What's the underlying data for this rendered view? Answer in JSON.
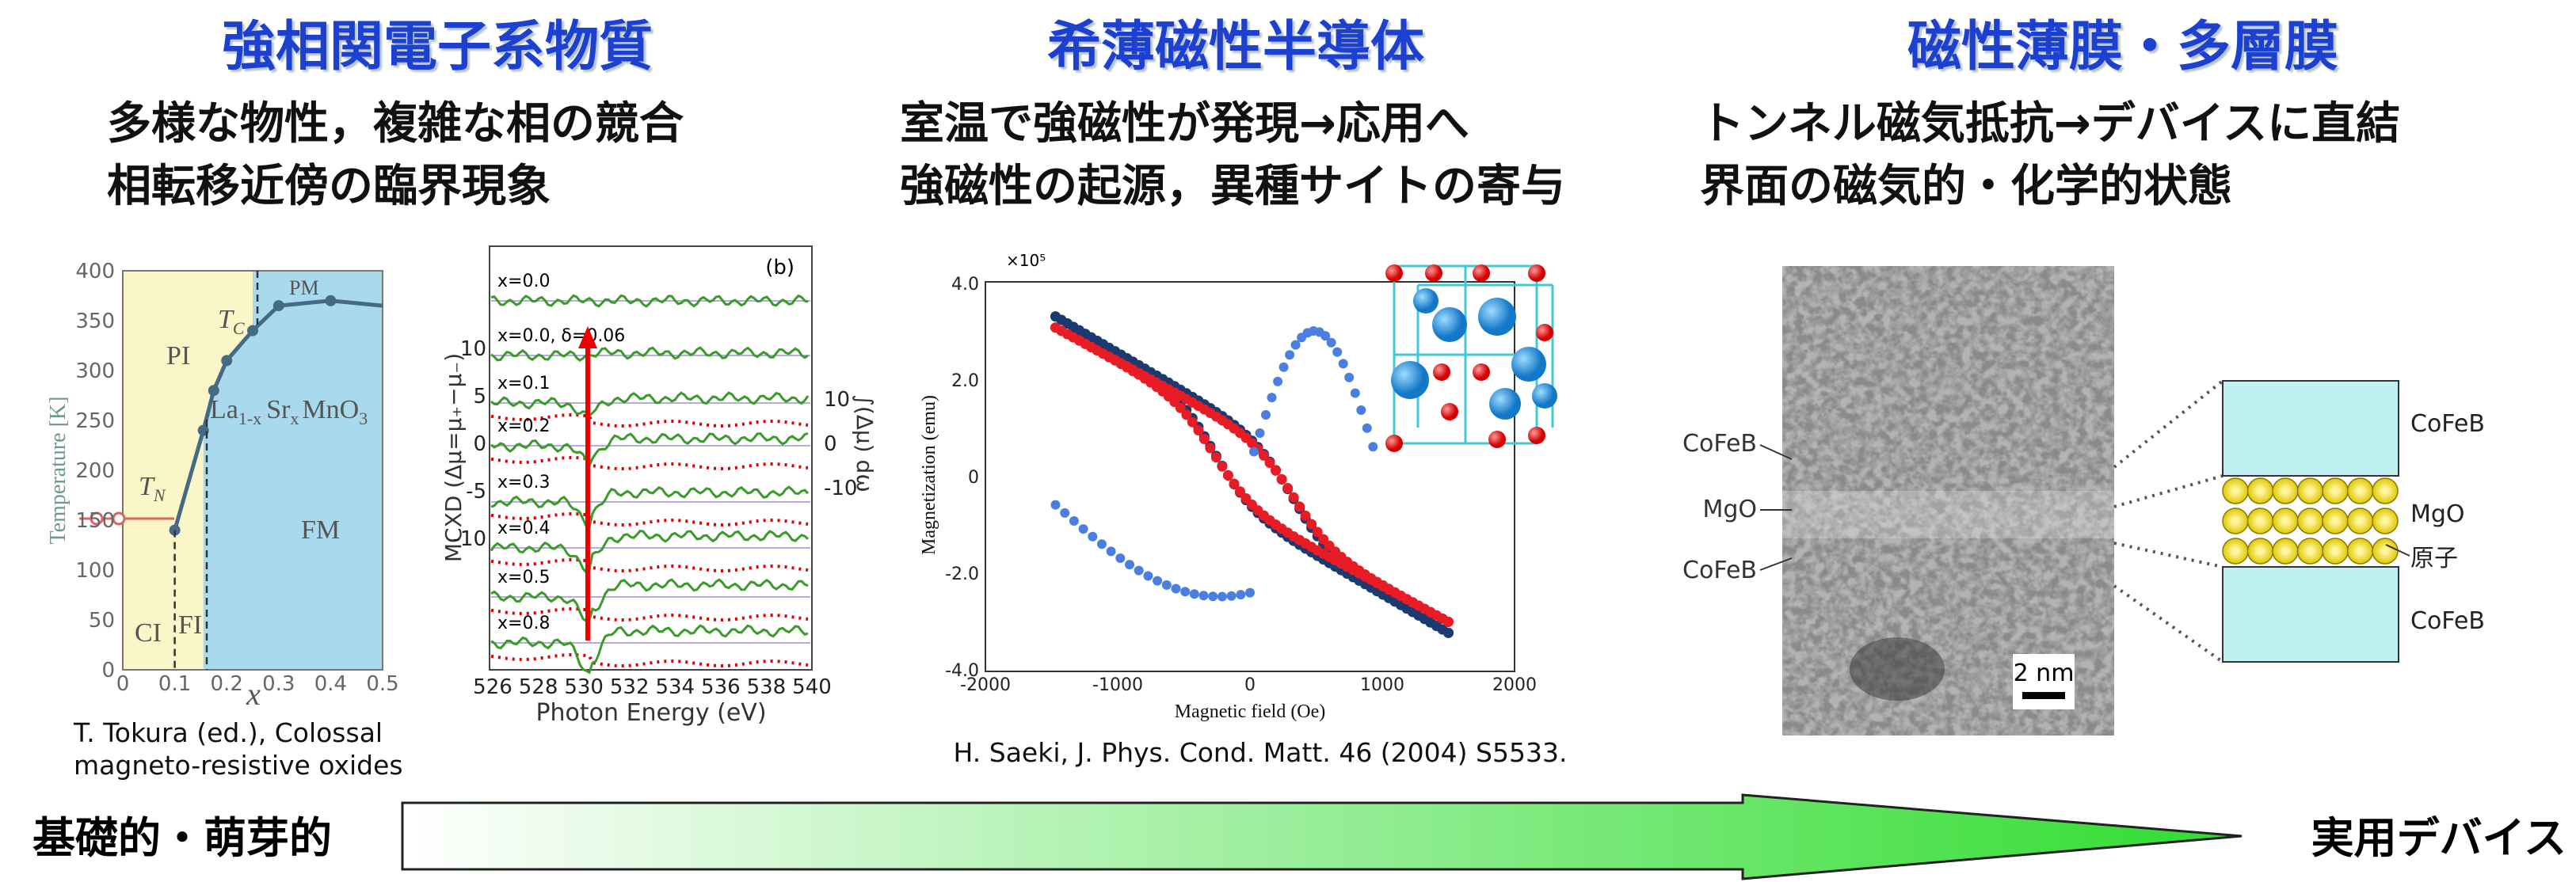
{
  "columns": [
    {
      "title": "強相関電子系物質",
      "lines": [
        "多様な物性，複雑な相の競合",
        "相転移近傍の臨界現象"
      ],
      "caption": [
        "T. Tokura (ed.), Colossal",
        "magneto-resistive oxides"
      ]
    },
    {
      "title": "希薄磁性半導体",
      "lines": [
        "室温で強磁性が発現→応用へ",
        "強磁性の起源，異種サイトの寄与"
      ],
      "caption": [
        "H. Saeki, J. Phys. Cond. Matt. 46 (2004) S5533."
      ]
    },
    {
      "title": "磁性薄膜・多層膜",
      "lines": [
        "トンネル磁気抵抗→デバイスに直結",
        "界面の磁気的・化学的状態"
      ]
    }
  ],
  "figures": {
    "phase_diagram": {
      "y_label": "Temperature [K]",
      "x_label": "x",
      "yticks": [
        "0",
        "50",
        "100",
        "150",
        "200",
        "250",
        "300",
        "350",
        "400"
      ],
      "xticks": [
        "0",
        "0.1",
        "0.2",
        "0.3",
        "0.4",
        "0.5"
      ],
      "regions": [
        "PI",
        "PM",
        "FM",
        "CI",
        "FI"
      ],
      "tc": "T",
      "tc_sub": "C",
      "tn": "T",
      "tn_sub": "N",
      "compound": [
        "La",
        "1-x",
        "Sr",
        "x",
        "MnO",
        "3"
      ]
    },
    "mcxd": {
      "panel": "(b)",
      "x_label": "Photon Energy (eV)",
      "y_label": "MCXD (Δμ=μ₊−μ₋)",
      "y2_label": "∫(Δμ) dω",
      "xticks": [
        "526",
        "528",
        "530",
        "532",
        "534",
        "536",
        "538",
        "540"
      ],
      "yticks": [
        "10",
        "5",
        "0",
        "-5",
        "-10"
      ],
      "y2ticks": [
        "10",
        "0",
        "-10"
      ],
      "rows": [
        "x=0.0",
        "x=0.0, δ=0.06",
        "x=0.1",
        "x=0.2",
        "x=0.3",
        "x=0.4",
        "x=0.5",
        "x=0.8"
      ]
    },
    "magnetization": {
      "y_label": "Magnetization (emu)",
      "x_label": "Magnetic field (Oe)",
      "scale": "×10⁵",
      "yticks": [
        "4.0",
        "2.0",
        "0",
        "-2.0",
        "-4.0"
      ],
      "xticks": [
        "-2000",
        "-1000",
        "0",
        "1000",
        "2000"
      ]
    },
    "tem": {
      "layers": [
        "CoFeB",
        "MgO",
        "CoFeB"
      ],
      "scale_bar": "2 nm",
      "schematic": [
        "CoFeB",
        "MgO",
        "原子",
        "CoFeB"
      ]
    }
  },
  "bottom": {
    "left": "基礎的・萌芽的",
    "right": "実用デバイス"
  }
}
